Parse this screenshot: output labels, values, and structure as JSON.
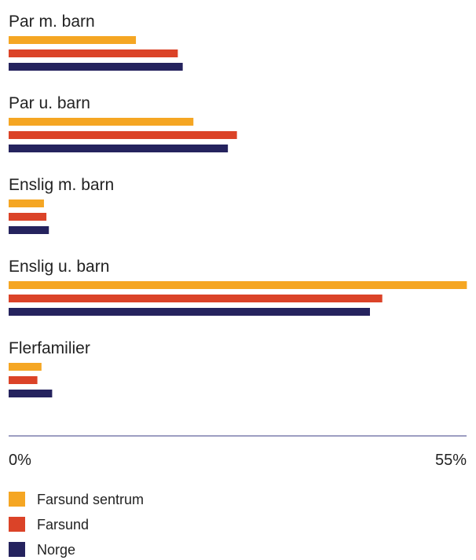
{
  "chart_data": {
    "type": "bar",
    "orientation": "horizontal",
    "categories": [
      "Par m. barn",
      "Par u. barn",
      "Enslig m. barn",
      "Enslig u. barn",
      "Flerfamilier"
    ],
    "series": [
      {
        "name": "Farsund sentrum",
        "color": "#f5a623",
        "values": [
          15.5,
          22.5,
          4.3,
          55.8,
          4.0
        ]
      },
      {
        "name": "Farsund",
        "color": "#db4328",
        "values": [
          20.6,
          27.8,
          4.6,
          45.5,
          3.5
        ]
      },
      {
        "name": "Norge",
        "color": "#25235e",
        "values": [
          21.2,
          26.7,
          4.9,
          44.0,
          5.3
        ]
      }
    ],
    "xlim": [
      0,
      55
    ],
    "x_ticks": [
      "0%",
      "55%"
    ],
    "legend_position": "bottom-left",
    "grid": false,
    "axis_color": "#7d7fae"
  }
}
